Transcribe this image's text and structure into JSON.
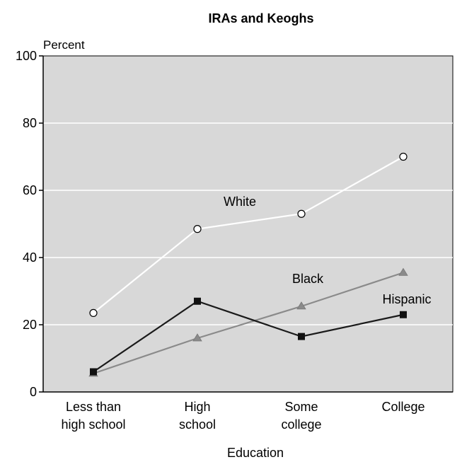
{
  "chart_data": {
    "type": "line",
    "title": "IRAs and Keoghs",
    "ylabel": "Percent",
    "xlabel": "Education",
    "ylim": [
      0,
      100
    ],
    "yticks": [
      0,
      20,
      40,
      60,
      80,
      100
    ],
    "grid": true,
    "categories": [
      [
        "Less than",
        "high school"
      ],
      [
        "High",
        "school"
      ],
      [
        "Some",
        "college"
      ],
      [
        "College"
      ]
    ],
    "series": [
      {
        "name": "White",
        "values": [
          23.5,
          48.5,
          53,
          70
        ],
        "color": "#ffffff",
        "marker": "circle"
      },
      {
        "name": "Black",
        "values": [
          5.5,
          16,
          25.5,
          35.5
        ],
        "color": "#8a8a8a",
        "marker": "triangle"
      },
      {
        "name": "Hispanic",
        "values": [
          6,
          27,
          16.5,
          23
        ],
        "color": "#1a1a1a",
        "marker": "square"
      }
    ],
    "plot_background": "#d8d8d8"
  }
}
